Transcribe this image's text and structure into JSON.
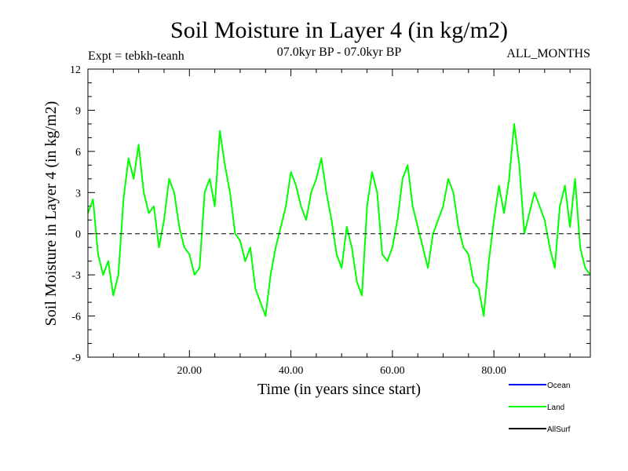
{
  "chart_data": {
    "type": "line",
    "title": "Soil Moisture in Layer 4 (in kg/m2)",
    "subtitle_left": "Expt = tebkh-teanh",
    "subtitle_center": "07.0kyr BP - 07.0kyr BP",
    "subtitle_right": "ALL_MONTHS",
    "xlabel": "Time (in years since start)",
    "ylabel": "Soil Moisture in Layer 4 (in kg/m2)",
    "xlim": [
      0,
      99
    ],
    "ylim": [
      -9,
      12
    ],
    "xticks": [
      20,
      40,
      60,
      80
    ],
    "xtick_labels": [
      "20.00",
      "40.00",
      "60.00",
      "80.00"
    ],
    "yticks": [
      -9,
      -6,
      -3,
      0,
      3,
      6,
      9,
      12
    ],
    "ytick_labels": [
      "-9",
      "-6",
      "-3",
      "0",
      "3",
      "6",
      "9",
      "12"
    ],
    "zero_line": true,
    "legend": [
      {
        "name": "Ocean",
        "color": "#0000ff"
      },
      {
        "name": "Land",
        "color": "#00ff00"
      },
      {
        "name": "AllSurf",
        "color": "#000000"
      }
    ],
    "series": [
      {
        "name": "Land",
        "color": "#00ff00",
        "x": [
          0,
          1,
          2,
          3,
          4,
          5,
          6,
          7,
          8,
          9,
          10,
          11,
          12,
          13,
          14,
          15,
          16,
          17,
          18,
          19,
          20,
          21,
          22,
          23,
          24,
          25,
          26,
          27,
          28,
          29,
          30,
          31,
          32,
          33,
          34,
          35,
          36,
          37,
          38,
          39,
          40,
          41,
          42,
          43,
          44,
          45,
          46,
          47,
          48,
          49,
          50,
          51,
          52,
          53,
          54,
          55,
          56,
          57,
          58,
          59,
          60,
          61,
          62,
          63,
          64,
          65,
          66,
          67,
          68,
          69,
          70,
          71,
          72,
          73,
          74,
          75,
          76,
          77,
          78,
          79,
          80,
          81,
          82,
          83,
          84,
          85,
          86,
          87,
          88,
          89,
          90,
          91,
          92,
          93,
          94,
          95,
          96,
          97,
          98,
          99
        ],
        "values": [
          1.5,
          2.5,
          -1.5,
          -3.0,
          -2.0,
          -4.5,
          -3.0,
          2.5,
          5.5,
          4.0,
          6.5,
          3.0,
          1.5,
          2.0,
          -1.0,
          1.0,
          4.0,
          3.0,
          0.5,
          -1.0,
          -1.5,
          -3.0,
          -2.5,
          3.0,
          4.0,
          2.0,
          7.5,
          5.0,
          3.0,
          0.0,
          -0.5,
          -2.0,
          -1.0,
          -4.0,
          -5.0,
          -6.0,
          -3.0,
          -1.0,
          0.5,
          2.0,
          4.5,
          3.5,
          2.0,
          1.0,
          3.0,
          4.0,
          5.5,
          3.0,
          1.0,
          -1.5,
          -2.5,
          0.5,
          -1.0,
          -3.5,
          -4.5,
          2.0,
          4.5,
          3.0,
          -1.5,
          -2.0,
          -1.0,
          1.0,
          4.0,
          5.0,
          2.0,
          0.5,
          -1.0,
          -2.5,
          0.0,
          1.0,
          2.0,
          4.0,
          3.0,
          0.5,
          -1.0,
          -1.5,
          -3.5,
          -4.0,
          -6.0,
          -2.0,
          1.0,
          3.5,
          1.5,
          4.0,
          8.0,
          5.0,
          0.0,
          1.5,
          3.0,
          2.0,
          1.0,
          -1.0,
          -2.5,
          2.0,
          3.5,
          0.5,
          4.0,
          -1.0,
          -2.5,
          -3.0
        ]
      }
    ]
  }
}
